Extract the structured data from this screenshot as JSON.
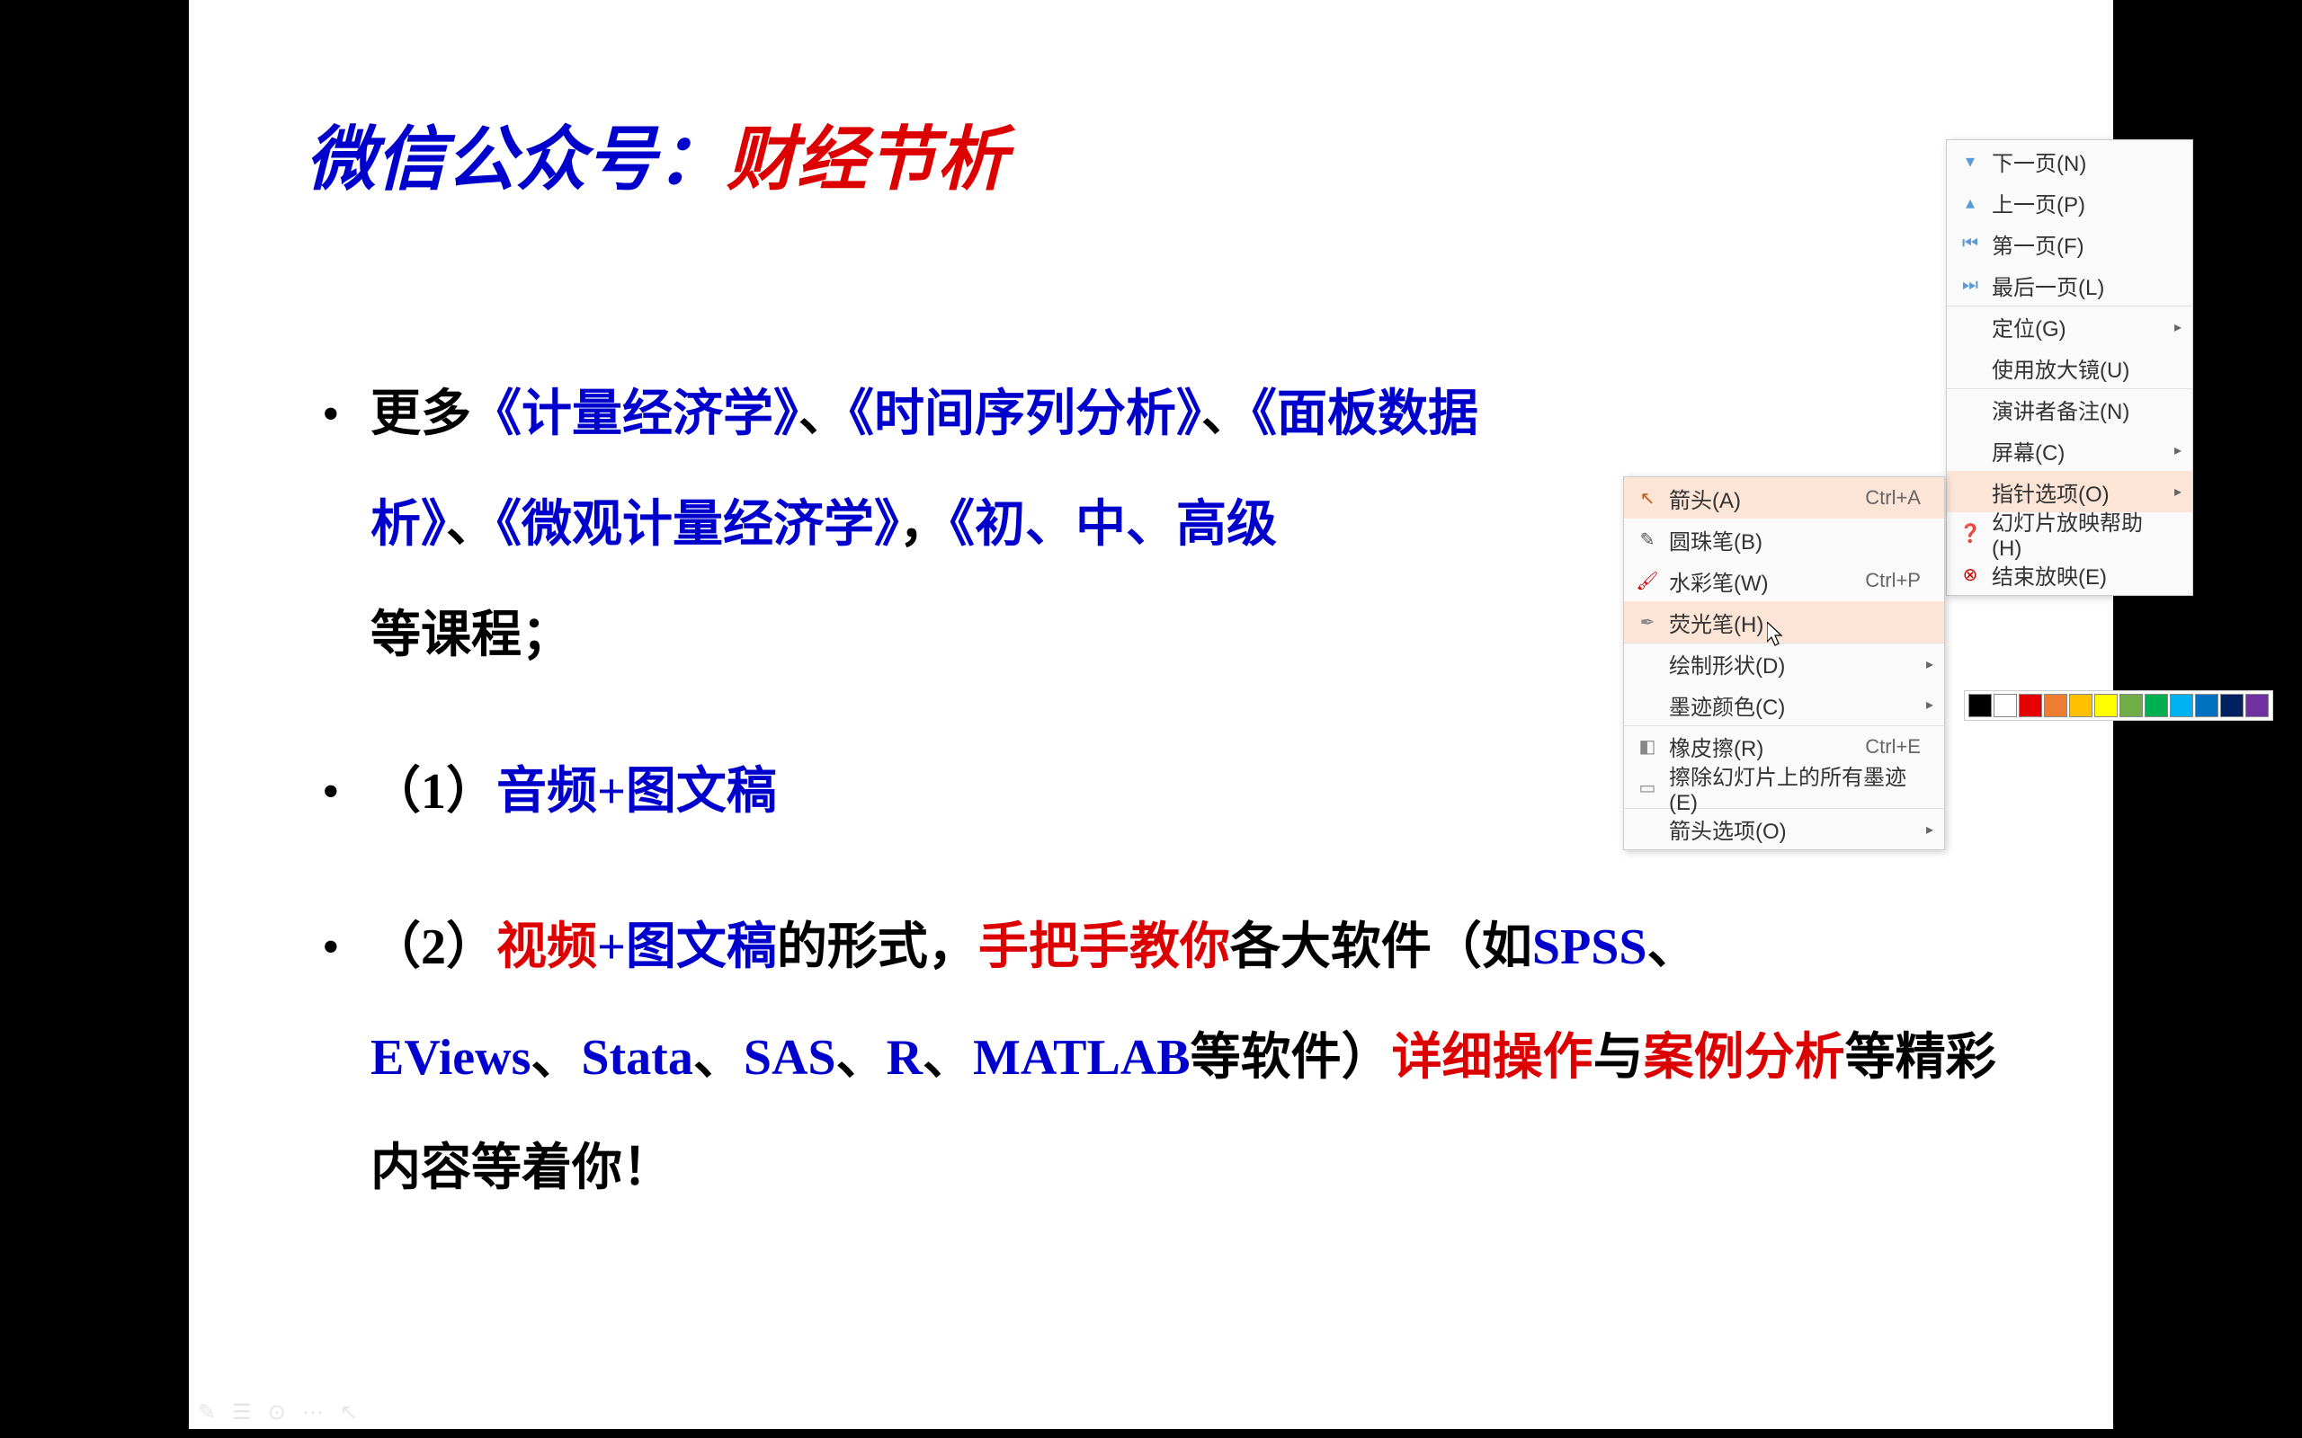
{
  "title": {
    "prefix": "微信公众号：",
    "name": "财经节析"
  },
  "bullets": {
    "b1": {
      "p0": "更多",
      "c1": "《计量经济学》",
      "s1": "、",
      "c2": "《时间序列分析》",
      "s2": "、",
      "c3": "《面板数据",
      "c3b": "析》",
      "s3": "、",
      "c4": "《微观计量经济学》",
      "s4": "，",
      "c5": "《初、中、高级",
      "tail": "等课程；"
    },
    "b2": {
      "num": "（1）",
      "c1": "音频+图文稿"
    },
    "b3": {
      "num": "（2）",
      "r1": "视频",
      "t1": "+图文稿",
      "t2": "的形式，",
      "r2": "手把手教你",
      "t3": "各大软件（如",
      "b1": "SPSS",
      "s1": "、",
      "b2": "EViews",
      "s2": "、",
      "b3": "Stata",
      "s3": "、",
      "b4": "SAS",
      "s4": "、",
      "b5": "R",
      "s5": "、",
      "b6": "MATLAB",
      "t4": "等软件）",
      "r3": "详细操作",
      "t5": "与",
      "r4": "案例分析",
      "t6": "等精彩内容等着你！"
    }
  },
  "menu_main": [
    {
      "icon": "▾",
      "iconColor": "#5b9bd5",
      "label": "下一页(N)"
    },
    {
      "icon": "▴",
      "iconColor": "#5b9bd5",
      "label": "上一页(P)"
    },
    {
      "icon": "⏮",
      "iconColor": "#5b9bd5",
      "label": "第一页(F)"
    },
    {
      "icon": "⏭",
      "iconColor": "#5b9bd5",
      "label": "最后一页(L)"
    },
    {
      "label": "定位(G)",
      "arrow": true,
      "sep": true
    },
    {
      "label": "使用放大镜(U)"
    },
    {
      "label": "演讲者备注(N)",
      "sep": true
    },
    {
      "label": "屏幕(C)",
      "arrow": true
    },
    {
      "label": "指针选项(O)",
      "arrow": true,
      "hovered": true
    },
    {
      "icon": "❓",
      "iconColor": "#5b9bd5",
      "label": "幻灯片放映帮助(H)"
    },
    {
      "icon": "⊗",
      "iconColor": "#c00",
      "label": "结束放映(E)"
    }
  ],
  "menu_sub": [
    {
      "icon": "↖",
      "iconColor": "#c55a11",
      "label": "箭头(A)",
      "shortcut": "Ctrl+A",
      "hovered": true
    },
    {
      "icon": "✎",
      "iconColor": "#555",
      "label": "圆珠笔(B)"
    },
    {
      "icon": "🖌",
      "iconColor": "#c00",
      "label": "水彩笔(W)",
      "shortcut": "Ctrl+P"
    },
    {
      "icon": "✒",
      "iconColor": "#888",
      "label": "荧光笔(H)",
      "hovered": true
    },
    {
      "label": "绘制形状(D)",
      "arrow": true,
      "sep": true
    },
    {
      "label": "墨迹颜色(C)",
      "arrow": true
    },
    {
      "icon": "◧",
      "iconColor": "#888",
      "label": "橡皮擦(R)",
      "shortcut": "Ctrl+E",
      "sep": true
    },
    {
      "icon": "▭",
      "iconColor": "#888",
      "label": "擦除幻灯片上的所有墨迹(E)"
    },
    {
      "label": "箭头选项(O)",
      "arrow": true,
      "sep": true
    }
  ],
  "palette": [
    "#000000",
    "#ffffff",
    "#e60000",
    "#ed7d31",
    "#ffc000",
    "#ffff00",
    "#70ad47",
    "#00b050",
    "#00b0f0",
    "#0070c0",
    "#002060",
    "#7030a0"
  ]
}
